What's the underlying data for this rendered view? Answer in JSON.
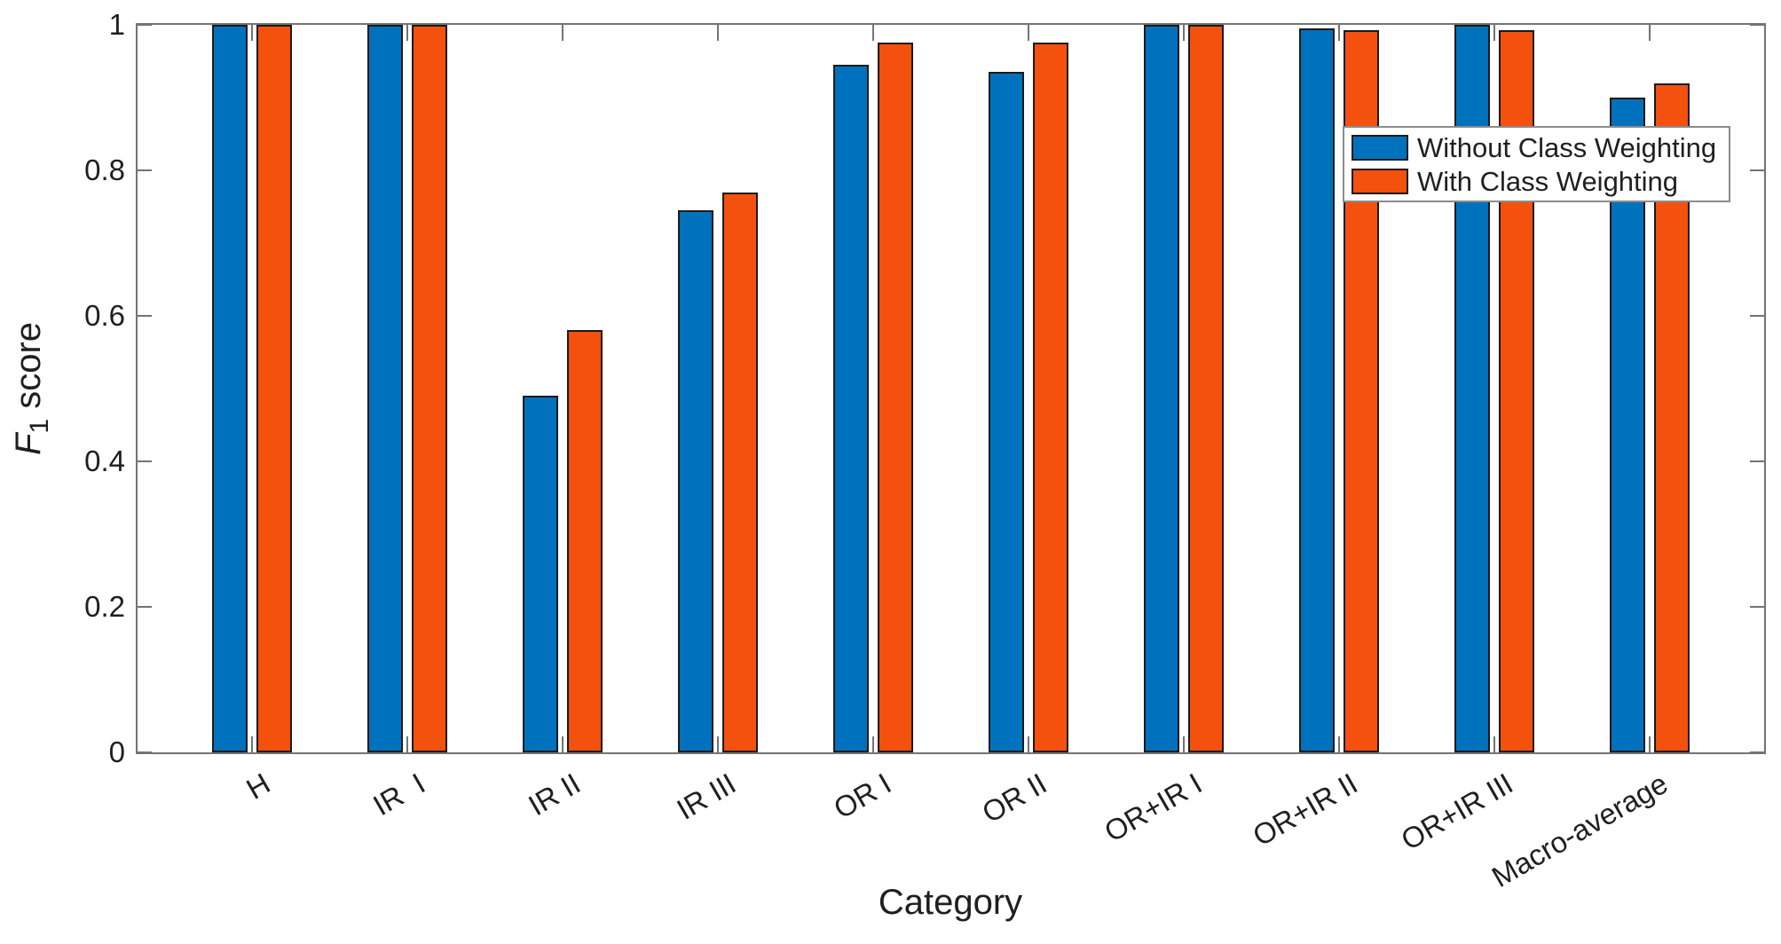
{
  "chart_data": {
    "type": "bar",
    "title": "",
    "xlabel": "Category",
    "ylabel": {
      "italic_prefix": "F",
      "subscript": "1",
      "suffix": " score"
    },
    "categories": [
      "H",
      "IR  I",
      "IR II",
      "IR III",
      "OR I",
      "OR II",
      "OR+IR I",
      "OR+IR II",
      "OR+IR III",
      "Macro-average"
    ],
    "series": [
      {
        "name": "Without Class Weighting",
        "color": "#0072BD",
        "values": [
          1.0,
          1.0,
          0.49,
          0.745,
          0.945,
          0.935,
          1.0,
          0.995,
          1.0,
          0.9
        ]
      },
      {
        "name": "With Class Weighting",
        "color": "#F4500E",
        "values": [
          1.0,
          1.0,
          0.58,
          0.77,
          0.975,
          0.975,
          1.0,
          0.993,
          0.993,
          0.92
        ]
      }
    ],
    "ylim": [
      0,
      1
    ],
    "yticks": [
      0,
      0.2,
      0.4,
      0.6,
      0.8,
      1
    ],
    "ytick_labels": [
      "0",
      "0.2",
      "0.4",
      "0.6",
      "0.8",
      "1"
    ],
    "legend_position": "northeast",
    "grid": false,
    "bar_edge_color": "#1a1a1a",
    "axis_color": "#737373",
    "background": "#ffffff"
  }
}
